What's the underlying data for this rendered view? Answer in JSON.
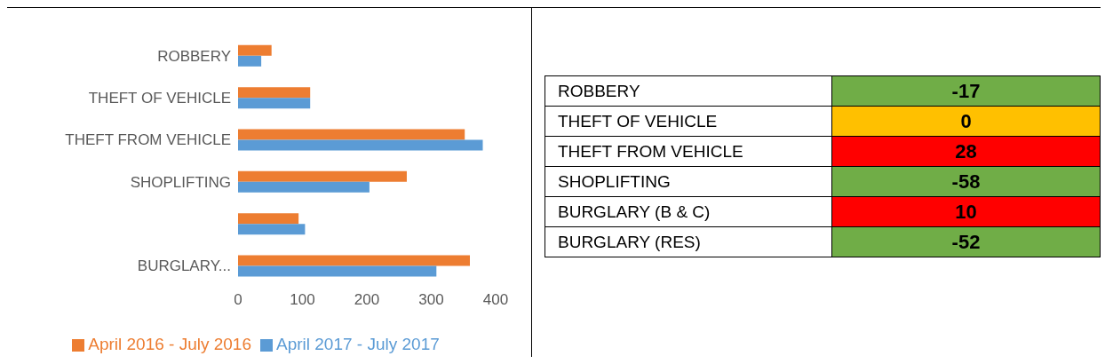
{
  "chart_data": [
    {
      "type": "bar",
      "orientation": "horizontal",
      "categories": [
        "ROBBERY",
        "THEFT OF VEHICLE",
        "THEFT FROM VEHICLE",
        "SHOPLIFTING",
        null,
        "BURGLARY..."
      ],
      "series": [
        {
          "name": "April 2016 - July 2016",
          "color": "#ed7d31",
          "values": [
            52,
            112,
            352,
            262,
            94,
            360
          ]
        },
        {
          "name": "April 2017  - July 2017",
          "color": "#5b9bd5",
          "values": [
            36,
            112,
            380,
            204,
            104,
            308
          ]
        }
      ],
      "xlim": [
        0,
        400
      ],
      "xticks": [
        0,
        100,
        200,
        300,
        400
      ],
      "legend": "bottom",
      "grid": false
    },
    {
      "type": "heatmap",
      "categories": [
        null
      ],
      "y_categories": [
        "ROBBERY",
        "THEFT OF VEHICLE",
        "THEFT FROM VEHICLE",
        "SHOPLIFTING",
        "BURGLARY (B & C)",
        "BURGLARY (RES)"
      ],
      "cells": [
        [
          -17
        ],
        [
          0
        ],
        [
          28
        ],
        [
          -58
        ],
        [
          10
        ],
        [
          -52
        ]
      ],
      "colors": [
        "#70ad47",
        "#ffc000",
        "#ff0000",
        "#70ad47",
        "#ff0000",
        "#70ad47"
      ],
      "data_labels": true
    }
  ]
}
